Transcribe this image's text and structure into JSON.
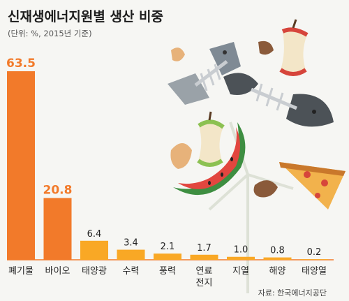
{
  "chart_data": {
    "type": "bar",
    "title": "신재생에너지원별 생산 비중",
    "subtitle": "(단위: %, 2015년 기준)",
    "categories": [
      "폐기물",
      "바이오",
      "태양광",
      "수력",
      "풍력",
      "연료\n전지",
      "지열",
      "해양",
      "태양열"
    ],
    "values": [
      63.5,
      20.8,
      6.4,
      3.4,
      2.1,
      1.7,
      1.0,
      0.8,
      0.2
    ],
    "value_labels": [
      "63.5",
      "20.8",
      "6.4",
      "3.4",
      "2.1",
      "1.7",
      "1.0",
      "0.8",
      "0.2"
    ],
    "xlabel": "",
    "ylabel": "",
    "ylim": [
      0,
      63.5
    ],
    "grid": false,
    "source": "자료: 한국에너지공단",
    "colors": {
      "highlight": "#f27a2a",
      "normal": "#f9a825",
      "value_highlight": "#f27a2a"
    }
  },
  "decoration": {
    "icons": [
      "fish-bone-icon",
      "apple-core-icon",
      "watermelon-rind-icon",
      "pizza-slice-icon",
      "egg-shell-icon",
      "wind-turbine-icon"
    ]
  }
}
